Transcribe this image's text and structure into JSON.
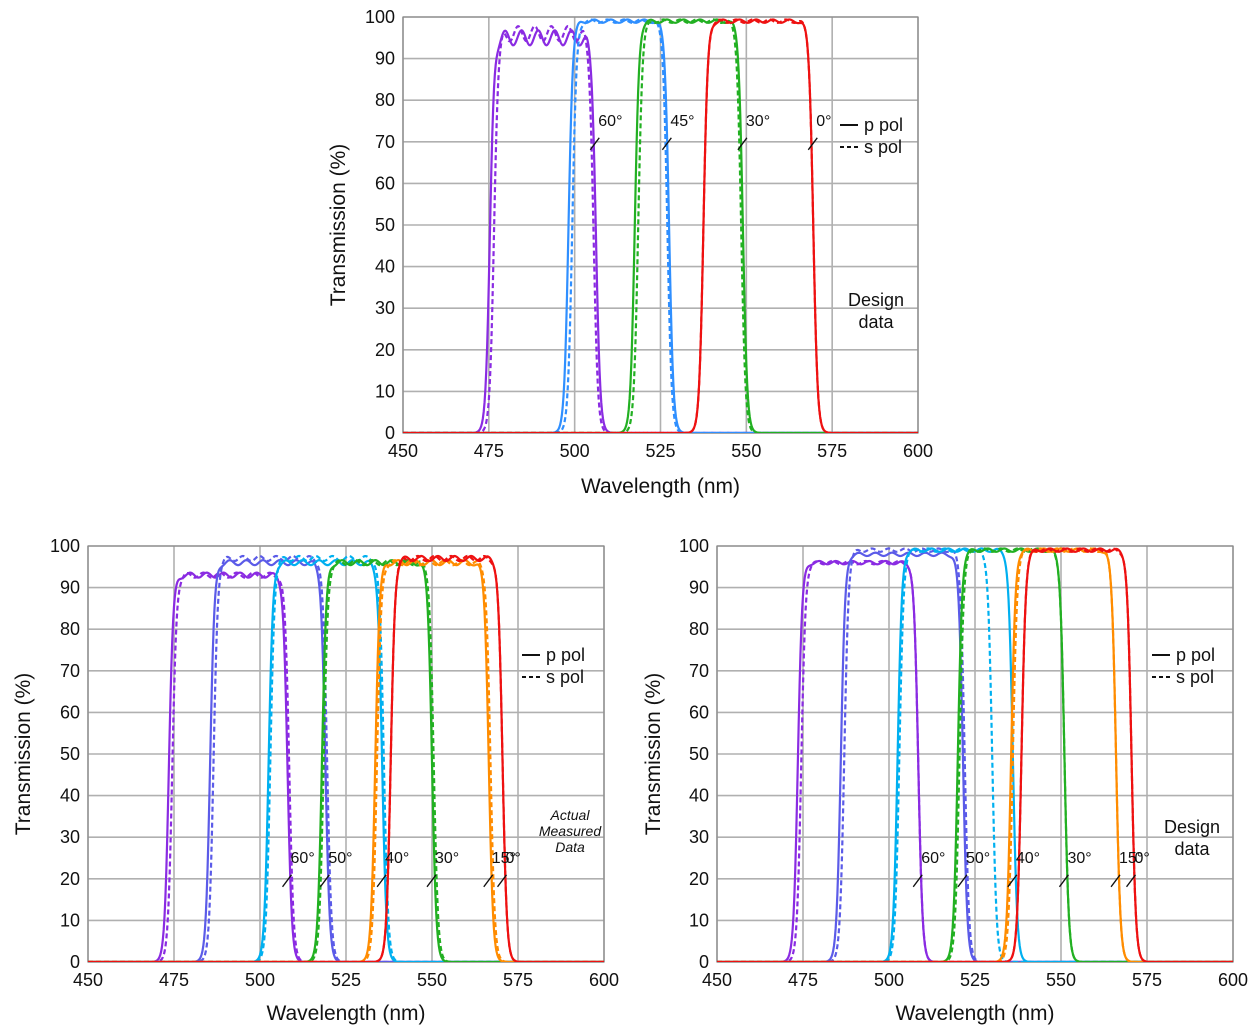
{
  "colors": {
    "60": "#8a2be2",
    "50": "#5b5be8",
    "45": "#2f8fff",
    "40": "#00b0f0",
    "30": "#22b022",
    "15": "#ff8c00",
    "0": "#ee1111"
  },
  "chart_data": [
    {
      "id": "top",
      "type": "line",
      "xlabel": "Wavelength (nm)",
      "ylabel": "Transmission (%)",
      "xlim": [
        450,
        600
      ],
      "ylim": [
        0,
        100
      ],
      "xticks": [
        "450",
        "475",
        "500",
        "525",
        "550",
        "575",
        "600"
      ],
      "yticks": [
        "0",
        "10",
        "20",
        "30",
        "40",
        "50",
        "60",
        "70",
        "80",
        "90",
        "100"
      ],
      "grid": true,
      "legend": {
        "placement": "right",
        "entries": [
          "p pol",
          "s pol"
        ]
      },
      "note": [
        "Design",
        "data"
      ],
      "note_italic": false,
      "series": [
        {
          "angle": "60",
          "p": [
            475.3,
            506.2,
            95
          ],
          "s": [
            476.5,
            505.5,
            96
          ]
        },
        {
          "angle": "45",
          "p": [
            498.2,
            527.5,
            99
          ],
          "s": [
            499.3,
            527.0,
            99
          ]
        },
        {
          "angle": "30",
          "p": [
            517.5,
            549.0,
            99
          ],
          "s": [
            518.5,
            548.5,
            99
          ]
        },
        {
          "angle": "0",
          "p": [
            537.5,
            569.5,
            99
          ],
          "s": [
            537.5,
            569.5,
            99
          ]
        }
      ],
      "angle_labels": [
        {
          "text": "60°",
          "x": 506,
          "y": 70,
          "series": "60"
        },
        {
          "text": "45°",
          "x": 527,
          "y": 70,
          "series": "45"
        },
        {
          "text": "30°",
          "x": 549,
          "y": 70,
          "series": "30"
        },
        {
          "text": "0°",
          "x": 569.5,
          "y": 70,
          "series": "0"
        }
      ]
    },
    {
      "id": "bottom-left",
      "type": "line",
      "xlabel": "Wavelength (nm)",
      "ylabel": "Transmission (%)",
      "xlim": [
        450,
        600
      ],
      "ylim": [
        0,
        100
      ],
      "xticks": [
        "450",
        "475",
        "500",
        "525",
        "550",
        "575",
        "600"
      ],
      "yticks": [
        "0",
        "10",
        "20",
        "30",
        "40",
        "50",
        "60",
        "70",
        "80",
        "90",
        "100"
      ],
      "grid": true,
      "legend": {
        "placement": "right",
        "entries": [
          "p pol",
          "s pol"
        ]
      },
      "note": [
        "Actual",
        "Measured",
        "Data"
      ],
      "note_italic": true,
      "series": [
        {
          "angle": "60",
          "p": [
            473.5,
            508.0,
            93
          ],
          "s": [
            474.5,
            508.5,
            93
          ]
        },
        {
          "angle": "50",
          "p": [
            485.5,
            519.0,
            96
          ],
          "s": [
            486.5,
            519.5,
            97
          ]
        },
        {
          "angle": "40",
          "p": [
            502.5,
            535.5,
            96
          ],
          "s": [
            503.0,
            536.0,
            97
          ]
        },
        {
          "angle": "30",
          "p": [
            518.0,
            550.0,
            96
          ],
          "s": [
            518.5,
            550.5,
            96
          ]
        },
        {
          "angle": "15",
          "p": [
            533.5,
            566.5,
            96
          ],
          "s": [
            534.0,
            567.0,
            96
          ]
        },
        {
          "angle": "0",
          "p": [
            538.0,
            570.5,
            97
          ],
          "s": [
            538.0,
            570.5,
            97
          ]
        }
      ],
      "angle_labels": [
        {
          "text": "60°",
          "x": 508,
          "y": 20,
          "series": "60"
        },
        {
          "text": "50°",
          "x": 519,
          "y": 20,
          "series": "50"
        },
        {
          "text": "40°",
          "x": 535.5,
          "y": 20,
          "series": "40"
        },
        {
          "text": "30°",
          "x": 550,
          "y": 20,
          "series": "30"
        },
        {
          "text": "15°",
          "x": 566.5,
          "y": 20,
          "series": "15"
        },
        {
          "text": "0°",
          "x": 570.5,
          "y": 20,
          "series": "0"
        }
      ]
    },
    {
      "id": "bottom-right",
      "type": "line",
      "xlabel": "Wavelength (nm)",
      "ylabel": "Transmission (%)",
      "xlim": [
        450,
        600
      ],
      "ylim": [
        0,
        100
      ],
      "xticks": [
        "450",
        "475",
        "500",
        "525",
        "550",
        "575",
        "600"
      ],
      "yticks": [
        "0",
        "10",
        "20",
        "30",
        "40",
        "50",
        "60",
        "70",
        "80",
        "90",
        "100"
      ],
      "grid": true,
      "legend": {
        "placement": "right",
        "entries": [
          "p pol",
          "s pol"
        ]
      },
      "note": [
        "Design",
        "data"
      ],
      "note_italic": false,
      "series": [
        {
          "angle": "60",
          "p": [
            473.5,
            508.5,
            96
          ],
          "s": [
            474.5,
            508.5,
            96
          ]
        },
        {
          "angle": "50",
          "p": [
            486.0,
            521.5,
            98
          ],
          "s": [
            487.0,
            522.0,
            99
          ]
        },
        {
          "angle": "40",
          "p": [
            502.5,
            536.0,
            99
          ],
          "s": [
            503.0,
            530.0,
            99
          ]
        },
        {
          "angle": "30",
          "p": [
            520.0,
            551.0,
            99
          ],
          "s": [
            520.5,
            551.0,
            99
          ]
        },
        {
          "angle": "15",
          "p": [
            535.5,
            566.0,
            99
          ],
          "s": [
            536.0,
            566.0,
            99
          ]
        },
        {
          "angle": "0",
          "p": [
            538.5,
            570.5,
            99
          ],
          "s": [
            538.5,
            570.5,
            99
          ]
        }
      ],
      "angle_labels": [
        {
          "text": "60°",
          "x": 508.5,
          "y": 20,
          "series": "60"
        },
        {
          "text": "50°",
          "x": 521.5,
          "y": 20,
          "series": "50"
        },
        {
          "text": "40°",
          "x": 536,
          "y": 20,
          "series": "40"
        },
        {
          "text": "30°",
          "x": 551,
          "y": 20,
          "series": "30"
        },
        {
          "text": "15°",
          "x": 566,
          "y": 20,
          "series": "15"
        },
        {
          "text": "0°",
          "x": 570.5,
          "y": 20,
          "series": "0"
        }
      ]
    }
  ]
}
